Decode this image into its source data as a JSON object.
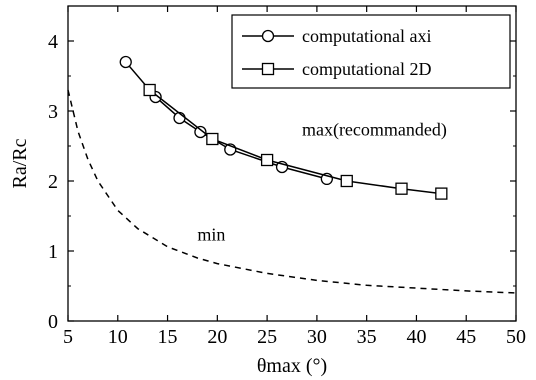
{
  "chart_data": {
    "type": "line",
    "xlabel": "θmax (°)",
    "ylabel": "Ra/Rc",
    "xlim": [
      5,
      50
    ],
    "ylim": [
      0,
      4.5
    ],
    "xticks": [
      5,
      10,
      15,
      20,
      25,
      30,
      35,
      40,
      45,
      50
    ],
    "yticks": [
      0,
      1,
      2,
      3,
      4
    ],
    "legend_position": "top-right",
    "grid": false,
    "series": [
      {
        "name": "computational axi",
        "marker": "circle",
        "line": "solid",
        "x": [
          10.8,
          13.8,
          16.2,
          18.3,
          21.3,
          26.5,
          31.0
        ],
        "y": [
          3.7,
          3.2,
          2.9,
          2.7,
          2.45,
          2.2,
          2.03
        ]
      },
      {
        "name": "computational 2D",
        "marker": "square",
        "line": "solid",
        "x": [
          13.2,
          19.5,
          25.0,
          33.0,
          38.5,
          42.5
        ],
        "y": [
          3.3,
          2.6,
          2.3,
          2.0,
          1.89,
          1.82
        ]
      },
      {
        "name": "",
        "marker": "none",
        "line": "dashed",
        "x": [
          5,
          6,
          7,
          8,
          10,
          12,
          15,
          18,
          20,
          25,
          30,
          35,
          40,
          45,
          50
        ],
        "y": [
          3.3,
          2.71,
          2.31,
          2.0,
          1.58,
          1.32,
          1.06,
          0.9,
          0.82,
          0.68,
          0.58,
          0.51,
          0.47,
          0.43,
          0.4
        ]
      }
    ],
    "annotations": [
      {
        "text": "max(recommanded)",
        "x": 28.5,
        "y": 2.65
      },
      {
        "text": "min",
        "x": 18.0,
        "y": 1.15
      }
    ]
  }
}
